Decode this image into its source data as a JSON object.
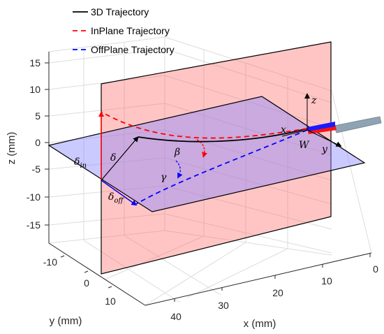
{
  "chart_data": {
    "type": "line-3d",
    "title": "",
    "legend": {
      "placement": "top-left",
      "entries": [
        {
          "label": "3D Trajectory",
          "color": "#000000",
          "dash": "solid"
        },
        {
          "label": "InPlane Trajectory",
          "color": "#ff0000",
          "dash": "dashed"
        },
        {
          "label": "OffPlane Trajectory",
          "color": "#0000ff",
          "dash": "dashed"
        }
      ]
    },
    "axes": {
      "x": {
        "label": "x (mm)",
        "range": [
          0,
          45
        ],
        "ticks": [
          0,
          10,
          20,
          30,
          40
        ]
      },
      "y": {
        "label": "y (mm)",
        "range": [
          -15,
          15
        ],
        "ticks": [
          -10,
          0,
          10
        ]
      },
      "z": {
        "label": "z (mm)",
        "range": [
          -18,
          18
        ],
        "ticks": [
          -15,
          -10,
          -5,
          0,
          5,
          10,
          15
        ]
      }
    },
    "grid": true,
    "annotations": {
      "delta_in": "δ",
      "delta_in_sub": "in",
      "delta": "δ",
      "delta_off": "δ",
      "delta_off_sub": "off",
      "beta": "β",
      "gamma": "γ",
      "frame_x": "x",
      "frame_y": "y",
      "frame_z": "z",
      "frame_W": "W"
    },
    "series": [
      {
        "name": "3D Trajectory",
        "points": [
          [
            0,
            0,
            0
          ],
          [
            8,
            -1.6,
            -0.4
          ],
          [
            16,
            -4.2,
            -1.6
          ],
          [
            24,
            -6.8,
            -1.0
          ],
          [
            30,
            -8.7,
            1.1
          ]
        ]
      },
      {
        "name": "InPlane Trajectory",
        "points": [
          [
            0,
            0,
            0
          ],
          [
            8,
            0,
            -0.3
          ],
          [
            16,
            0,
            -1.6
          ],
          [
            24,
            0,
            1.4
          ],
          [
            30,
            0,
            5.2
          ]
        ]
      },
      {
        "name": "OffPlane Trajectory",
        "points": [
          [
            0,
            0,
            0
          ],
          [
            8,
            -1.5,
            0
          ],
          [
            16,
            -4.1,
            0
          ],
          [
            24,
            -7.8,
            0
          ],
          [
            30,
            -10.6,
            0
          ]
        ]
      }
    ]
  }
}
